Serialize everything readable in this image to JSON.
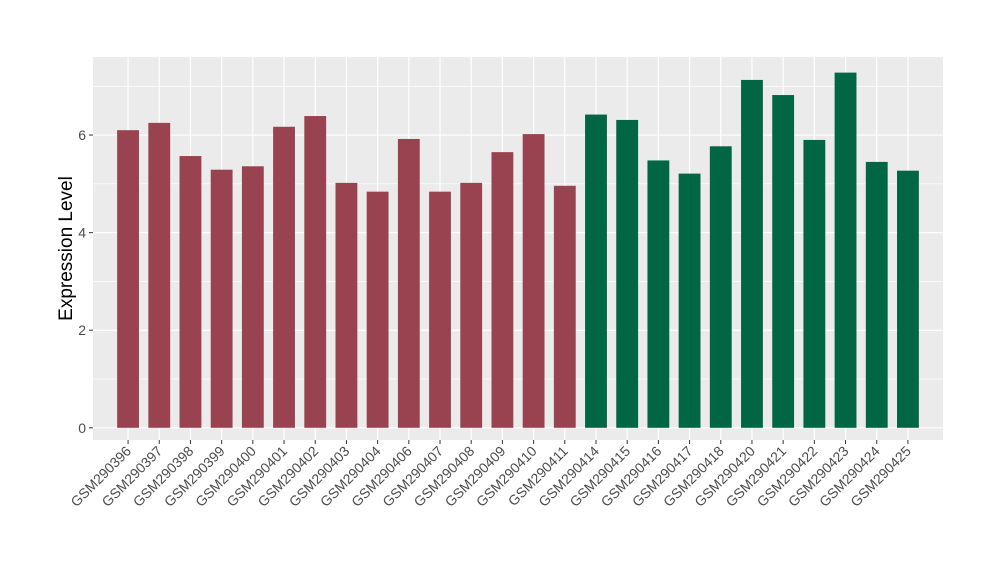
{
  "chart_data": {
    "type": "bar",
    "title": "",
    "xlabel": "",
    "ylabel": "Expression Level",
    "ylim": [
      -0.25,
      7.6
    ],
    "yticks": [
      0,
      2,
      4,
      6
    ],
    "grid": true,
    "legend": "none",
    "categories": [
      "GSM290396",
      "GSM290397",
      "GSM290398",
      "GSM290399",
      "GSM290400",
      "GSM290401",
      "GSM290402",
      "GSM290403",
      "GSM290404",
      "GSM290406",
      "GSM290407",
      "GSM290408",
      "GSM290409",
      "GSM290410",
      "GSM290411",
      "GSM290414",
      "GSM290415",
      "GSM290416",
      "GSM290417",
      "GSM290418",
      "GSM290420",
      "GSM290421",
      "GSM290422",
      "GSM290423",
      "GSM290424",
      "GSM290425"
    ],
    "values": [
      6.1,
      6.25,
      5.57,
      5.29,
      5.36,
      6.17,
      6.39,
      5.02,
      4.84,
      5.92,
      4.84,
      5.02,
      5.65,
      6.02,
      4.96,
      6.42,
      6.31,
      5.48,
      5.21,
      5.77,
      7.13,
      6.82,
      5.9,
      7.28,
      5.45,
      5.27
    ],
    "groups": [
      1,
      1,
      1,
      1,
      1,
      1,
      1,
      1,
      1,
      1,
      1,
      1,
      1,
      1,
      1,
      2,
      2,
      2,
      2,
      2,
      2,
      2,
      2,
      2,
      2,
      2
    ],
    "colors": {
      "group1": "#9a4350",
      "group2": "#006643",
      "panel": "#ebebeb",
      "grid": "#ffffff"
    }
  }
}
